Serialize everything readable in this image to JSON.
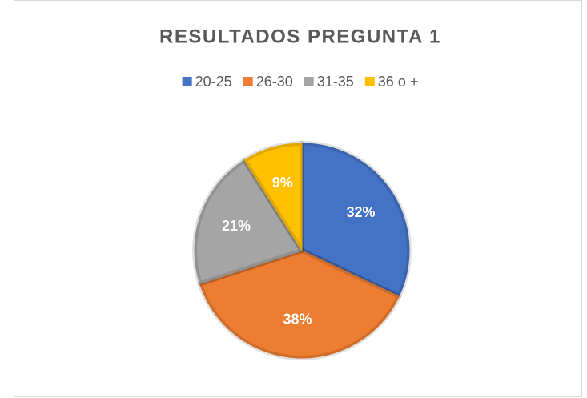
{
  "chart_data": {
    "type": "pie",
    "title": "RESULTADOS PREGUNTA 1",
    "categories": [
      "20-25",
      "26-30",
      "31-35",
      "36 o +"
    ],
    "values": [
      32,
      38,
      21,
      9
    ],
    "value_labels": [
      "32%",
      "38%",
      "21%",
      "9%"
    ],
    "colors": [
      "#4472c4",
      "#ed7d31",
      "#a5a5a5",
      "#ffc000"
    ],
    "legend": "top"
  }
}
